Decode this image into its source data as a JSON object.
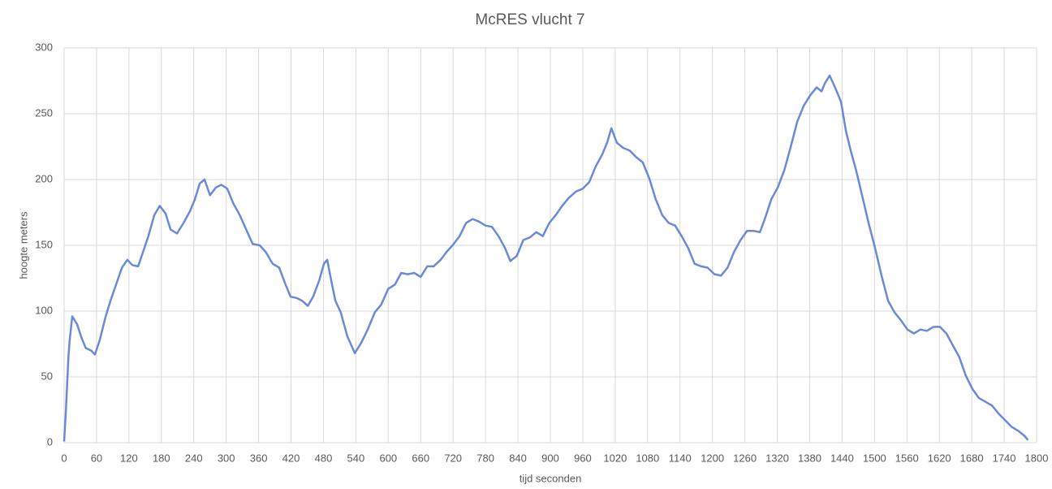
{
  "chart_data": {
    "type": "line",
    "title": "McRES vlucht 7",
    "xlabel": "tijd seconden",
    "ylabel": "hoogte meters",
    "x": [
      0,
      3,
      8,
      10,
      15,
      24,
      32,
      40,
      50,
      57,
      66,
      77,
      86,
      96,
      107,
      117,
      126,
      137,
      146,
      156,
      167,
      177,
      188,
      197,
      209,
      221,
      233,
      242,
      251,
      260,
      270,
      281,
      291,
      302,
      313,
      325,
      337,
      349,
      362,
      373,
      386,
      398,
      410,
      419,
      430,
      440,
      451,
      461,
      472,
      481,
      487,
      494,
      502,
      512,
      524,
      538,
      550,
      562,
      575,
      587,
      600,
      612,
      624,
      636,
      648,
      660,
      672,
      684,
      697,
      708,
      721,
      732,
      744,
      756,
      768,
      780,
      792,
      804,
      816,
      826,
      838,
      850,
      862,
      874,
      886,
      898,
      910,
      922,
      934,
      948,
      960,
      972,
      984,
      996,
      1005,
      1013,
      1023,
      1035,
      1047,
      1059,
      1071,
      1083,
      1095,
      1107,
      1119,
      1131,
      1143,
      1155,
      1167,
      1179,
      1191,
      1204,
      1216,
      1228,
      1240,
      1252,
      1264,
      1276,
      1288,
      1297,
      1309,
      1321,
      1333,
      1345,
      1357,
      1369,
      1381,
      1393,
      1402,
      1408,
      1417,
      1429,
      1438,
      1447,
      1456,
      1466,
      1477,
      1489,
      1501,
      1513,
      1525,
      1537,
      1549,
      1561,
      1573,
      1585,
      1597,
      1609,
      1621,
      1633,
      1645,
      1657,
      1669,
      1681,
      1693,
      1706,
      1718,
      1730,
      1742,
      1754,
      1766,
      1778,
      1784
    ],
    "series": [
      {
        "color": "#6a8ad8",
        "values": [
          1,
          22,
          65,
          77,
          96,
          90,
          80,
          72,
          70,
          67,
          78,
          96,
          108,
          120,
          133,
          139,
          135,
          134,
          145,
          157,
          173,
          180,
          174,
          162,
          159,
          167,
          176,
          185,
          197,
          200,
          188,
          194,
          196,
          193,
          182,
          173,
          162,
          151,
          150,
          145,
          136,
          133,
          120,
          111,
          110,
          108,
          104,
          111,
          123,
          136,
          139,
          124,
          108,
          99,
          81,
          68,
          76,
          86,
          99,
          105,
          117,
          120,
          129,
          128,
          129,
          126,
          134,
          134,
          139,
          145,
          151,
          157,
          167,
          170,
          168,
          165,
          164,
          157,
          148,
          138,
          142,
          154,
          156,
          160,
          157,
          167,
          173,
          180,
          186,
          191,
          193,
          198,
          210,
          219,
          228,
          239,
          228,
          224,
          222,
          217,
          213,
          201,
          185,
          173,
          167,
          165,
          157,
          148,
          136,
          134,
          133,
          128,
          127,
          133,
          145,
          154,
          161,
          161,
          160,
          170,
          185,
          194,
          207,
          225,
          244,
          256,
          264,
          270,
          267,
          273,
          279,
          268,
          259,
          237,
          222,
          207,
          188,
          167,
          148,
          127,
          108,
          99,
          93,
          86,
          83,
          86,
          85,
          88,
          88,
          83,
          74,
          65,
          51,
          41,
          34,
          31,
          28,
          22,
          17,
          12,
          9,
          5,
          2
        ]
      }
    ],
    "xlim": [
      0,
      1800
    ],
    "xticks": [
      0,
      60,
      120,
      180,
      240,
      300,
      360,
      420,
      480,
      540,
      600,
      660,
      720,
      780,
      840,
      900,
      960,
      1020,
      1080,
      1140,
      1200,
      1260,
      1320,
      1380,
      1440,
      1500,
      1560,
      1620,
      1680,
      1740,
      1800
    ],
    "ylim": [
      0,
      300
    ],
    "yticks": [
      0,
      50,
      100,
      150,
      200,
      250,
      300
    ],
    "grid": true
  }
}
